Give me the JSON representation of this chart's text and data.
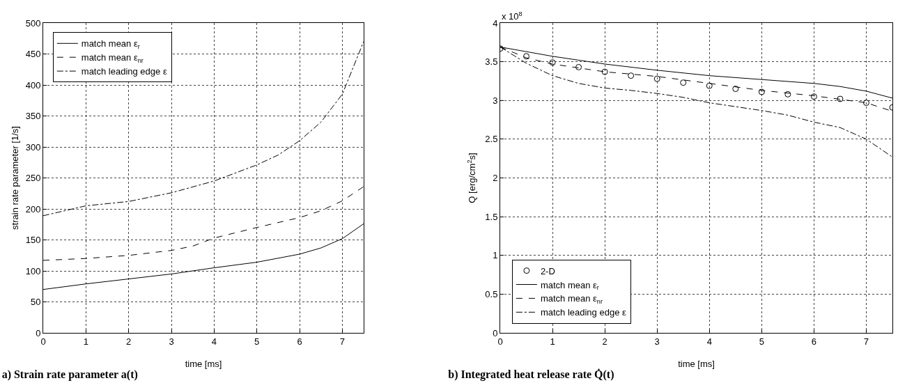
{
  "chart_data": [
    {
      "type": "line",
      "title": "a) Strain rate parameter a(t)",
      "xlabel": "time [ms]",
      "ylabel": "strain rate parameter [1/s]",
      "x": [
        0,
        1,
        2,
        3,
        4,
        5,
        6,
        6.5,
        7,
        7.5
      ],
      "series": [
        {
          "name": "match mean ε$_{r}$",
          "color": "#000000",
          "line_style": "solid",
          "values": [
            70,
            79,
            87,
            95,
            105,
            114,
            127,
            137,
            152,
            176
          ]
        },
        {
          "name": "match mean ε$_{nr}$",
          "color": "#000000",
          "line_style": "dashed",
          "x": [
            0,
            1,
            2,
            3,
            3.5,
            4,
            5,
            6,
            6.5,
            7,
            7.5
          ],
          "values": [
            117,
            120,
            125,
            133,
            140,
            153,
            170,
            186,
            197,
            213,
            236
          ]
        },
        {
          "name": "match leading edge ε",
          "color": "#000000",
          "line_style": "dashdot",
          "x": [
            0,
            1,
            2,
            3,
            4,
            5,
            5.5,
            6,
            6.5,
            7,
            7.5
          ],
          "values": [
            189,
            205,
            212,
            226,
            245,
            271,
            287,
            310,
            340,
            385,
            470
          ]
        }
      ],
      "xlim": [
        0,
        7.5
      ],
      "xticks": [
        0,
        1,
        2,
        3,
        4,
        5,
        6,
        7
      ],
      "ylim": [
        0,
        500
      ],
      "yticks": [
        0,
        50,
        100,
        150,
        200,
        250,
        300,
        350,
        400,
        450,
        500
      ],
      "grid": true,
      "legend": "top left",
      "marker": "none"
    },
    {
      "type": "line",
      "title": "b) Integrated heat release rate Q̇(t)",
      "xlabel": "time [ms]",
      "ylabel": "Q [erg/cm$^{2}$s]",
      "annotations": [
        "x 10$^{8}$"
      ],
      "x": [
        0,
        1,
        2,
        3,
        4,
        5,
        6,
        6.5,
        7,
        7.5
      ],
      "series": [
        {
          "name": "2-D",
          "type": "scatter",
          "marker": "circle",
          "color": "#000000",
          "x": [
            0,
            0.5,
            1,
            1.5,
            2,
            2.5,
            3,
            3.5,
            4,
            4.5,
            5,
            5.5,
            6,
            6.5,
            7,
            7.5
          ],
          "values": [
            3.67,
            3.57,
            3.49,
            3.43,
            3.37,
            3.32,
            3.28,
            3.23,
            3.19,
            3.15,
            3.11,
            3.08,
            3.05,
            3.02,
            2.97,
            2.91
          ]
        },
        {
          "name": "match mean ε$_{r}$",
          "color": "#000000",
          "line_style": "solid",
          "values": [
            3.69,
            3.57,
            3.47,
            3.39,
            3.32,
            3.27,
            3.22,
            3.18,
            3.12,
            3.03
          ]
        },
        {
          "name": "match mean ε$_{nr}$",
          "color": "#000000",
          "line_style": "dashed",
          "x": [
            0,
            0.5,
            1,
            2,
            3,
            4,
            5,
            6,
            7,
            7.5
          ],
          "values": [
            3.69,
            3.55,
            3.47,
            3.37,
            3.31,
            3.22,
            3.13,
            3.06,
            2.97,
            2.86
          ]
        },
        {
          "name": "match leading edge ε",
          "color": "#000000",
          "line_style": "dashdot",
          "x": [
            0,
            0.5,
            1,
            1.5,
            2,
            2.5,
            3,
            3.5,
            4,
            4.5,
            5,
            5.5,
            6,
            6.5,
            7,
            7.5
          ],
          "values": [
            3.69,
            3.48,
            3.32,
            3.22,
            3.16,
            3.13,
            3.09,
            3.04,
            2.97,
            2.92,
            2.87,
            2.81,
            2.72,
            2.65,
            2.5,
            2.27
          ]
        }
      ],
      "xlim": [
        0,
        7.5
      ],
      "xticks": [
        0,
        1,
        2,
        3,
        4,
        5,
        6,
        7
      ],
      "ylim": [
        0,
        4
      ],
      "yticks": [
        0,
        0.5,
        1,
        1.5,
        2,
        2.5,
        3,
        3.5,
        4
      ],
      "grid": true,
      "legend": "bottom left",
      "marker": "none"
    }
  ]
}
